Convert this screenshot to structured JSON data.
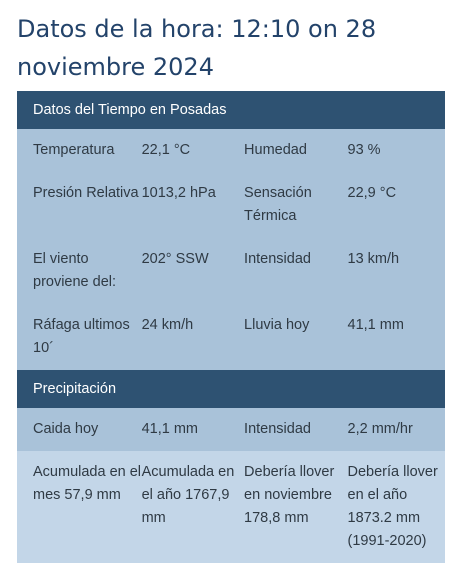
{
  "page": {
    "title": "Datos de la hora: 12:10 on 28 noviembre 2024"
  },
  "weather": {
    "header": "Datos del Tiempo en Posadas",
    "rows": [
      {
        "l1": "Temperatura",
        "v1": "22,1 °C",
        "l2": "Humedad",
        "v2": "93 %"
      },
      {
        "l1": "Presión Relativa",
        "v1": "1013,2 hPa",
        "l2": "Sensación Térmica",
        "v2": "22,9 °C"
      },
      {
        "l1": "El viento proviene del:",
        "v1": "202° SSW",
        "l2": "Intensidad",
        "v2": "13 km/h"
      },
      {
        "l1": "Ráfaga ultimos 10´",
        "v1": "24 km/h",
        "l2": "Lluvia hoy",
        "v2": "41,1 mm"
      }
    ]
  },
  "precipitation": {
    "header": "Precipitación",
    "rows": [
      {
        "l1": "Caida hoy",
        "v1": "41,1 mm",
        "l2": "Intensidad",
        "v2": "2,2 mm/hr"
      },
      {
        "l1": "Acumulada en el mes 57,9 mm",
        "v1": "Acumulada en el año 1767,9 mm",
        "l2": "Debería llover en noviembre 178,8 mm",
        "v2": "Debería llover en el año 1873.2 mm (1991-2020)"
      }
    ]
  }
}
